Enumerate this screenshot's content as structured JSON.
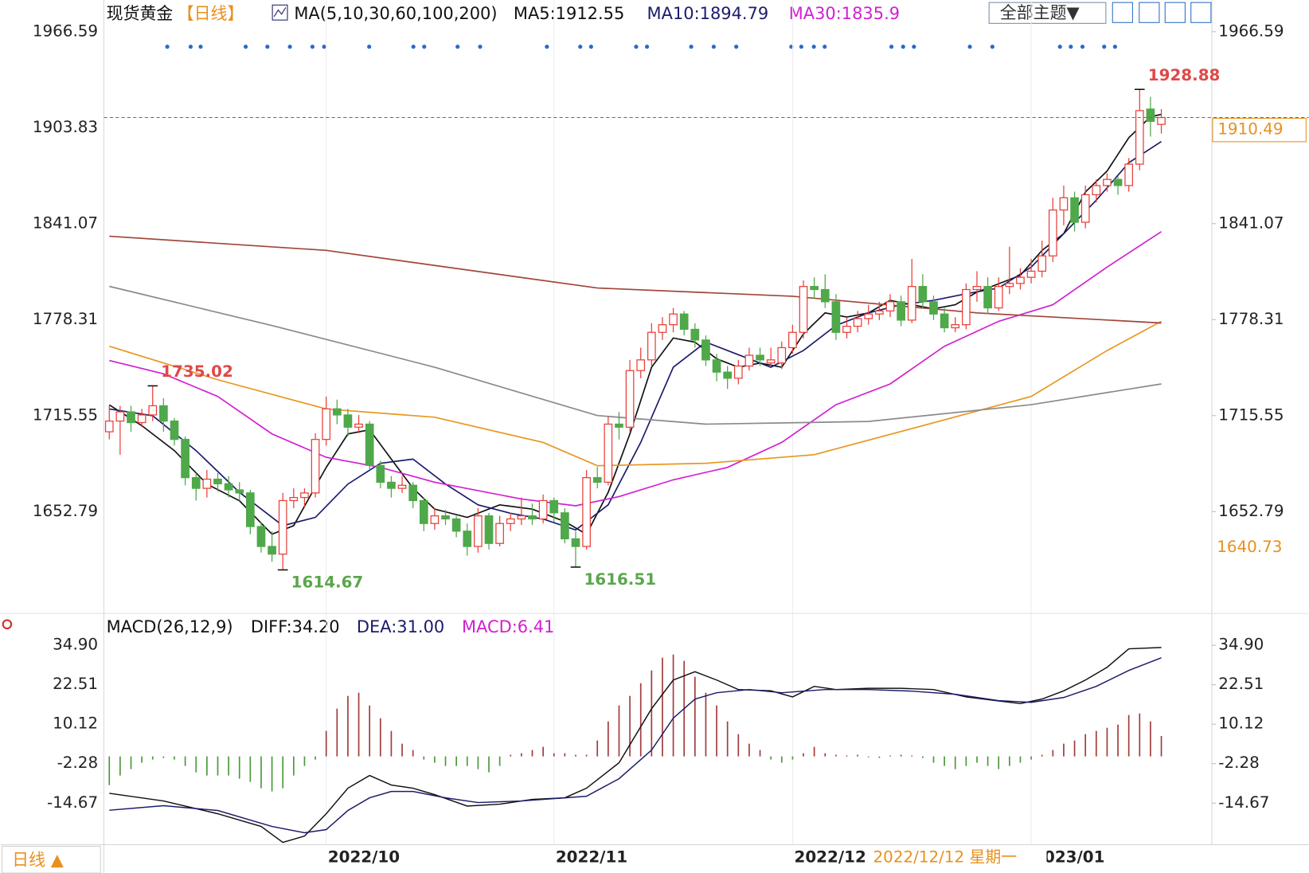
{
  "chart_data": [
    {
      "type": "candlestick",
      "title": "现货黄金",
      "period": "【日线】",
      "indicator": "MA(5,10,30,60,100,200)",
      "button": "全部主题▼",
      "period_button": "日线 ▲",
      "crosshair_date": "2022/12/12 星期一",
      "crosshair_price": "1640.73",
      "categories": [
        null,
        null,
        null,
        null,
        null,
        null,
        null,
        null,
        null,
        null,
        null,
        null,
        null,
        null,
        null,
        null,
        null,
        null,
        null,
        null,
        null,
        null,
        null,
        null,
        null,
        null,
        null,
        null,
        null,
        null,
        null,
        null,
        null,
        null,
        null,
        null,
        null,
        null,
        null,
        null,
        null,
        null,
        null,
        null,
        null,
        null,
        null,
        null,
        null,
        null,
        null,
        null,
        null,
        null,
        null,
        null,
        null,
        null,
        null,
        null,
        null,
        null,
        null,
        null,
        null,
        null,
        null,
        null,
        null,
        null,
        null,
        null,
        null,
        null,
        null,
        null,
        null,
        null,
        null,
        null,
        null,
        null,
        null,
        null,
        null,
        null,
        null,
        null,
        null,
        null,
        null,
        null,
        null,
        null,
        null,
        null,
        null,
        null
      ],
      "open": [
        1705,
        1712,
        1718,
        1711,
        1716,
        1722,
        1712,
        1700,
        1675,
        1668,
        1674,
        1671,
        1667,
        1665,
        1643,
        1630,
        1625,
        1660,
        1662,
        1665,
        1700,
        1720,
        1716,
        1708,
        1710,
        1683,
        1672,
        1668,
        1670,
        1660,
        1645,
        1650,
        1648,
        1640,
        1630,
        1650,
        1632,
        1645,
        1648,
        1650,
        1648,
        1660,
        1652,
        1635,
        1630,
        1675,
        1672,
        1710,
        1708,
        1745,
        1752,
        1770,
        1775,
        1782,
        1772,
        1765,
        1752,
        1744,
        1740,
        1748,
        1755,
        1750,
        1750,
        1760,
        1770,
        1800,
        1798,
        1790,
        1770,
        1774,
        1779,
        1782,
        1784,
        1790,
        1778,
        1800,
        1790,
        1782,
        1773,
        1775,
        1798,
        1800,
        1786,
        1800,
        1802,
        1806,
        1810,
        1820,
        1850,
        1858,
        1842,
        1860,
        1866,
        1870,
        1866,
        1880,
        1916,
        1906
      ],
      "high": [
        1722,
        1722,
        1722,
        1720,
        1735.02,
        1727,
        1714,
        1702,
        1678,
        1680,
        1678,
        1676,
        1672,
        1667,
        1646,
        1640,
        1665,
        1668,
        1668,
        1704,
        1728,
        1726,
        1720,
        1716,
        1712,
        1686,
        1676,
        1676,
        1672,
        1662,
        1655,
        1654,
        1650,
        1645,
        1655,
        1652,
        1650,
        1652,
        1662,
        1658,
        1664,
        1662,
        1655,
        1640,
        1680,
        1682,
        1715,
        1718,
        1752,
        1760,
        1776,
        1780,
        1786,
        1784,
        1776,
        1768,
        1756,
        1748,
        1752,
        1760,
        1760,
        1760,
        1764,
        1775,
        1804,
        1806,
        1808,
        1795,
        1780,
        1784,
        1788,
        1790,
        1795,
        1794,
        1818,
        1808,
        1794,
        1786,
        1780,
        1802,
        1810,
        1806,
        1806,
        1826,
        1812,
        1818,
        1830,
        1858,
        1866,
        1862,
        1866,
        1870,
        1874,
        1872,
        1884,
        1928.88,
        1924,
        1916
      ],
      "low": [
        1700,
        1690,
        1705,
        1708,
        1712,
        1705,
        1696,
        1670,
        1660,
        1662,
        1666,
        1662,
        1660,
        1638,
        1626,
        1620,
        1614.67,
        1655,
        1656,
        1662,
        1696,
        1710,
        1702,
        1704,
        1680,
        1668,
        1662,
        1665,
        1655,
        1640,
        1641,
        1644,
        1636,
        1624,
        1626,
        1628,
        1630,
        1640,
        1644,
        1644,
        1645,
        1646,
        1632,
        1616.51,
        1628,
        1668,
        1670,
        1700,
        1705,
        1740,
        1748,
        1765,
        1770,
        1768,
        1760,
        1748,
        1738,
        1733,
        1736,
        1745,
        1748,
        1748,
        1746,
        1756,
        1766,
        1792,
        1786,
        1765,
        1766,
        1770,
        1775,
        1778,
        1780,
        1774,
        1776,
        1786,
        1778,
        1770,
        1770,
        1772,
        1790,
        1782,
        1784,
        1795,
        1798,
        1802,
        1806,
        1816,
        1840,
        1836,
        1838,
        1855,
        1862,
        1860,
        1862,
        1876,
        1898,
        1900
      ],
      "close": [
        1712,
        1718,
        1711,
        1716,
        1722,
        1712,
        1700,
        1675,
        1668,
        1674,
        1671,
        1667,
        1665,
        1643,
        1630,
        1625,
        1660,
        1662,
        1665,
        1700,
        1720,
        1716,
        1708,
        1710,
        1683,
        1672,
        1668,
        1670,
        1660,
        1645,
        1650,
        1648,
        1640,
        1630,
        1650,
        1632,
        1645,
        1648,
        1650,
        1648,
        1660,
        1652,
        1635,
        1630,
        1675,
        1672,
        1710,
        1708,
        1745,
        1752,
        1770,
        1775,
        1782,
        1772,
        1765,
        1752,
        1744,
        1740,
        1748,
        1755,
        1752,
        1752,
        1760,
        1770,
        1800,
        1798,
        1790,
        1770,
        1774,
        1779,
        1782,
        1784,
        1790,
        1778,
        1800,
        1790,
        1782,
        1773,
        1775,
        1798,
        1800,
        1786,
        1800,
        1802,
        1806,
        1810,
        1820,
        1850,
        1858,
        1842,
        1860,
        1866,
        1870,
        1866,
        1880,
        1915,
        1908,
        1910.49
      ],
      "up_color": "#e8403a",
      "down_color": "#4fa84a",
      "series": [
        {
          "name": "MA5:1912.55",
          "color": "#111111",
          "x": [
            0,
            3,
            6,
            9,
            12,
            15,
            17,
            20,
            22,
            24,
            26,
            28,
            30,
            33,
            36,
            39,
            42,
            44,
            46,
            48,
            50,
            52,
            54,
            56,
            58,
            60,
            62,
            64,
            66,
            68,
            70,
            72,
            74,
            76,
            78,
            80,
            82,
            84,
            86,
            88,
            90,
            92,
            94,
            96,
            97
          ],
          "values": [
            1722.6,
            1709,
            1692.7,
            1670.8,
            1659.9,
            1638,
            1643.6,
            1681.7,
            1703.6,
            1706.3,
            1687.1,
            1668.1,
            1654.4,
            1649,
            1657.2,
            1654.4,
            1646.3,
            1638,
            1665.4,
            1703.6,
            1747.2,
            1766.3,
            1763.6,
            1752.7,
            1747.2,
            1749.9,
            1747.2,
            1769,
            1782.7,
            1780,
            1782.7,
            1790.9,
            1788.1,
            1785.4,
            1788.1,
            1796.3,
            1801.8,
            1807.3,
            1823.6,
            1834.5,
            1861.8,
            1875.5,
            1897.3,
            1910.9,
            1912.55
          ]
        },
        {
          "name": "MA10:1894.79",
          "color": "#1b1b6b",
          "x": [
            0,
            4,
            8,
            12,
            16,
            19,
            22,
            25,
            28,
            31,
            34,
            37,
            40,
            43,
            46,
            49,
            52,
            55,
            58,
            61,
            64,
            67,
            70,
            73,
            76,
            79,
            82,
            85,
            88,
            91,
            94,
            97
          ],
          "values": [
            1719.9,
            1715.5,
            1692.7,
            1665.4,
            1643.6,
            1649,
            1670.8,
            1684.4,
            1687.1,
            1670.8,
            1657.2,
            1651.7,
            1647.9,
            1640.8,
            1657.2,
            1698,
            1747.2,
            1763.6,
            1755.4,
            1747.2,
            1758.1,
            1774.5,
            1782.7,
            1788.1,
            1790.9,
            1795.2,
            1799,
            1812.7,
            1834.5,
            1856.4,
            1880.9,
            1894.79
          ]
        },
        {
          "name": "MA30:1835.9",
          "color": "#d21fd2",
          "x": [
            0,
            5,
            10,
            15,
            20,
            25,
            30,
            38,
            43,
            47,
            52,
            57,
            62,
            67,
            72,
            77,
            82,
            87,
            92,
            97
          ],
          "values": [
            1751.6,
            1742.9,
            1728.1,
            1703.6,
            1688.3,
            1681.7,
            1672,
            1661,
            1656.6,
            1662.6,
            1673.6,
            1681.7,
            1698,
            1722.7,
            1736.3,
            1760.9,
            1777.2,
            1788.1,
            1812.7,
            1835.9
          ]
        },
        {
          "color": "#e8961e",
          "x": [
            0,
            10,
            20,
            30,
            40,
            45,
            55,
            65,
            75,
            85,
            92,
            97
          ],
          "values": [
            1760.9,
            1739,
            1719.9,
            1714.5,
            1698,
            1682.8,
            1684.4,
            1690,
            1709,
            1728.1,
            1758.1,
            1777.2
          ]
        },
        {
          "color": "#8a8a8a",
          "x": [
            0,
            15,
            30,
            45,
            55,
            70,
            85,
            97
          ],
          "values": [
            1800.1,
            1774.5,
            1747.2,
            1715.6,
            1710,
            1711.7,
            1722.7,
            1736.3
          ]
        },
        {
          "color": "#a0453a",
          "x": [
            0,
            20,
            45,
            63,
            80,
            97
          ],
          "values": [
            1832.9,
            1823.6,
            1799,
            1793.6,
            1782.7,
            1776.1
          ]
        }
      ],
      "ylim": [
        1586.2,
        1987.33
      ],
      "yticks": [
        1966.59,
        1903.83,
        1841.07,
        1778.31,
        1715.55,
        1652.79
      ],
      "xticks": [
        {
          "value": 20,
          "label": "2022/10"
        },
        {
          "value": 41,
          "label": "2022/11"
        },
        {
          "value": 63,
          "label": "2022/12"
        },
        {
          "value": 85,
          "label": "2023/01"
        }
      ],
      "grid": true,
      "last_price_line": true
    },
    {
      "type": "macd",
      "title": "MACD(26,12,9)",
      "histogram": {
        "name": "MACD:6.41",
        "label_color": "#d21fd2",
        "up_color": "#a33a3a",
        "down_color": "#4a9a3a",
        "values": [
          -9,
          -6,
          -4,
          -2,
          -1,
          -0.5,
          -1,
          -3,
          -5,
          -6,
          -6,
          -6,
          -7,
          -8,
          -10,
          -11,
          -10,
          -6,
          -3,
          -1,
          8,
          15,
          19,
          20,
          16,
          12,
          8,
          4,
          2,
          -1,
          -2,
          -3,
          -3,
          -3,
          -4,
          -5,
          -3,
          0.5,
          1,
          2,
          3,
          1,
          1,
          0.5,
          0.5,
          5,
          11,
          16,
          19,
          23,
          27,
          31,
          32,
          30,
          25,
          20,
          16,
          11,
          7,
          4,
          2,
          -1,
          -2,
          -1,
          1,
          3,
          1,
          0.5,
          0.3,
          0.5,
          -0.3,
          -0.5,
          0.3,
          0.5,
          0.3,
          -0.5,
          -2,
          -3,
          -4,
          -3,
          -2,
          -3,
          -4,
          -3,
          -2,
          -1,
          0.5,
          2,
          4,
          5,
          7,
          8,
          9,
          10,
          13,
          13.5,
          11,
          6.41
        ]
      },
      "series": [
        {
          "name": "DIFF:34.20",
          "color": "#111111",
          "label_color": "#111111",
          "x": [
            0,
            5,
            10,
            14,
            16,
            18,
            20,
            22,
            24,
            26,
            28,
            30,
            33,
            36,
            39,
            42,
            44,
            47,
            50,
            52,
            54,
            56,
            58,
            61,
            63,
            65,
            67,
            70,
            73,
            76,
            79,
            82,
            84,
            86,
            88,
            90,
            92,
            94,
            97
          ],
          "values": [
            -11.6,
            -14,
            -18,
            -22,
            -27,
            -25,
            -18,
            -10,
            -6,
            -9,
            -10,
            -12,
            -15.6,
            -15,
            -13.5,
            -13,
            -10,
            -2,
            15,
            24,
            26.6,
            24,
            21,
            20.6,
            18.7,
            22,
            21,
            21.4,
            21.4,
            21,
            18.7,
            17.4,
            16.6,
            18,
            20.6,
            24,
            28,
            33.8,
            34.2
          ]
        },
        {
          "name": "DEA:31.00",
          "color": "#1b1b6b",
          "label_color": "#1b1b6b",
          "x": [
            0,
            5,
            10,
            15,
            18,
            20,
            22,
            24,
            26,
            28,
            31,
            34,
            38,
            42,
            44,
            47,
            50,
            52,
            54,
            56,
            59,
            62,
            66,
            70,
            74,
            78,
            82,
            85,
            88,
            91,
            94,
            97
          ],
          "values": [
            -16.9,
            -15.5,
            -17,
            -22,
            -24,
            -23,
            -17,
            -13,
            -11,
            -11,
            -13,
            -14.5,
            -14,
            -13,
            -12.5,
            -7,
            2,
            12,
            18,
            20,
            21,
            20,
            21,
            21,
            20.5,
            19.5,
            17.5,
            17,
            18.5,
            22,
            27,
            31
          ]
        }
      ],
      "ylim": [
        -27.71,
        37.83
      ],
      "yticks": [
        {
          "value": 34.9,
          "label": "34.90"
        },
        22.51,
        10.12,
        -2.28,
        -14.67
      ]
    }
  ]
}
